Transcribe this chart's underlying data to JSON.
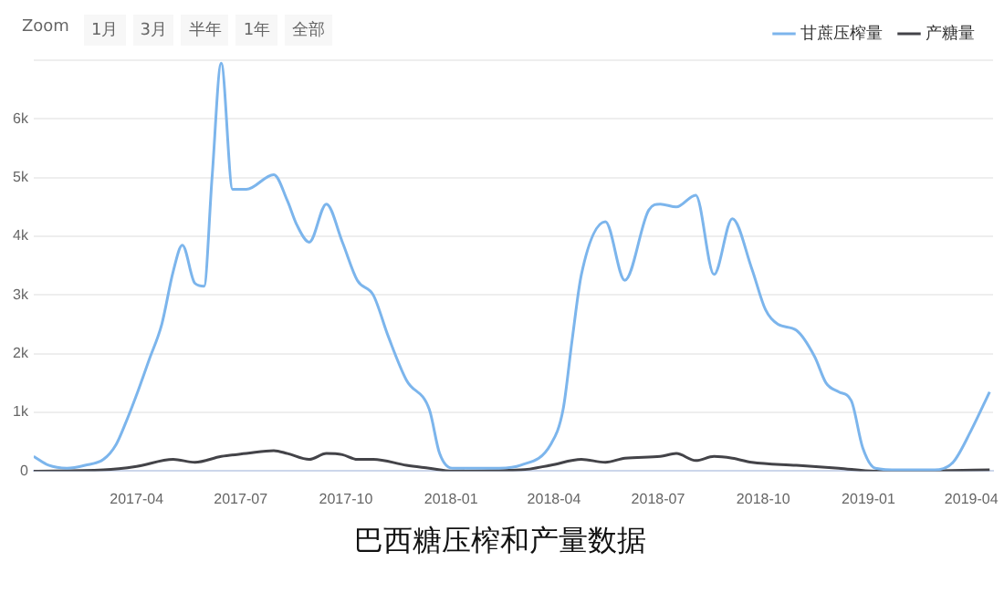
{
  "chart_data": {
    "type": "line",
    "title": "巴西糖压榨和产量数据",
    "annotations": [
      "Zoom",
      "1月",
      "3月",
      "半年",
      "1年",
      "全部"
    ],
    "xlim": [
      "2017-01-01",
      "2019-04-20"
    ],
    "xticks": [
      "2017-04",
      "2017-07",
      "2017-10",
      "2018-01",
      "2018-04",
      "2018-07",
      "2018-10",
      "2019-01",
      "2019-04"
    ],
    "ylim": [
      0,
      7000
    ],
    "yticks": [
      0,
      {
        "value": 1000,
        "label": "1k"
      },
      {
        "value": 2000,
        "label": "2k"
      },
      {
        "value": 3000,
        "label": "3k"
      },
      {
        "value": 4000,
        "label": "4k"
      },
      {
        "value": 5000,
        "label": "5k"
      },
      {
        "value": 6000,
        "label": "6k"
      },
      {
        "value": 7000,
        "label": null
      }
    ],
    "grid": "y",
    "legend": "top right",
    "marker": "none",
    "line_style": "solid",
    "series": [
      {
        "name": "甘蔗压榨量",
        "color": "#7cb5ec",
        "x": [
          "2017-01-01",
          "2017-01-14",
          "2017-01-30",
          "2017-02-15",
          "2017-03-03",
          "2017-03-14",
          "2017-03-22",
          "2017-04-01",
          "2017-04-12",
          "2017-04-23",
          "2017-05-03",
          "2017-05-11",
          "2017-05-22",
          "2017-05-30",
          "2017-06-06",
          "2017-06-14",
          "2017-06-24",
          "2017-07-06",
          "2017-07-30",
          "2017-08-11",
          "2017-08-19",
          "2017-08-30",
          "2017-09-14",
          "2017-09-28",
          "2017-10-11",
          "2017-10-25",
          "2017-11-07",
          "2017-11-23",
          "2017-12-13",
          "2017-12-22",
          "2018-01-02",
          "2018-01-18",
          "2018-02-12",
          "2018-03-03",
          "2018-03-29",
          "2018-04-09",
          "2018-04-17",
          "2018-04-25",
          "2018-05-16",
          "2018-06-02",
          "2018-06-23",
          "2018-07-03",
          "2018-07-17",
          "2018-08-03",
          "2018-08-19",
          "2018-09-04",
          "2018-09-21",
          "2018-10-03",
          "2018-10-14",
          "2018-10-30",
          "2018-11-15",
          "2018-11-25",
          "2018-12-06",
          "2018-12-17",
          "2018-12-27",
          "2019-01-07",
          "2019-01-28",
          "2019-02-28",
          "2019-03-16",
          "2019-04-01",
          "2019-04-17"
        ],
        "values": [
          250,
          100,
          50,
          100,
          200,
          450,
          800,
          1300,
          1900,
          2500,
          3400,
          3850,
          3200,
          3150,
          5000,
          6950,
          4800,
          4800,
          5050,
          4600,
          4200,
          3900,
          4550,
          3900,
          3250,
          3000,
          2300,
          1550,
          1050,
          300,
          50,
          50,
          50,
          100,
          450,
          1050,
          2250,
          3350,
          4250,
          3250,
          4450,
          4550,
          4500,
          4700,
          3350,
          4300,
          3450,
          2750,
          2500,
          2400,
          1950,
          1500,
          1350,
          1200,
          400,
          50,
          20,
          20,
          150,
          700,
          1350
        ]
      },
      {
        "name": "产糖量",
        "color": "#434348",
        "x": [
          "2017-01-01",
          "2017-03-03",
          "2017-04-01",
          "2017-05-03",
          "2017-05-22",
          "2017-06-14",
          "2017-07-06",
          "2017-07-30",
          "2017-08-11",
          "2017-08-30",
          "2017-09-14",
          "2017-09-28",
          "2017-10-11",
          "2017-10-25",
          "2017-11-23",
          "2017-12-13",
          "2018-01-02",
          "2018-03-03",
          "2018-03-29",
          "2018-04-25",
          "2018-05-16",
          "2018-06-02",
          "2018-07-03",
          "2018-07-17",
          "2018-08-03",
          "2018-08-19",
          "2018-09-04",
          "2018-09-21",
          "2018-10-30",
          "2018-12-06",
          "2019-01-07",
          "2019-04-17"
        ],
        "values": [
          0,
          20,
          80,
          200,
          150,
          250,
          300,
          350,
          300,
          200,
          300,
          280,
          200,
          200,
          100,
          50,
          0,
          20,
          100,
          200,
          150,
          220,
          250,
          300,
          180,
          250,
          220,
          150,
          100,
          50,
          0,
          20
        ]
      }
    ]
  }
}
